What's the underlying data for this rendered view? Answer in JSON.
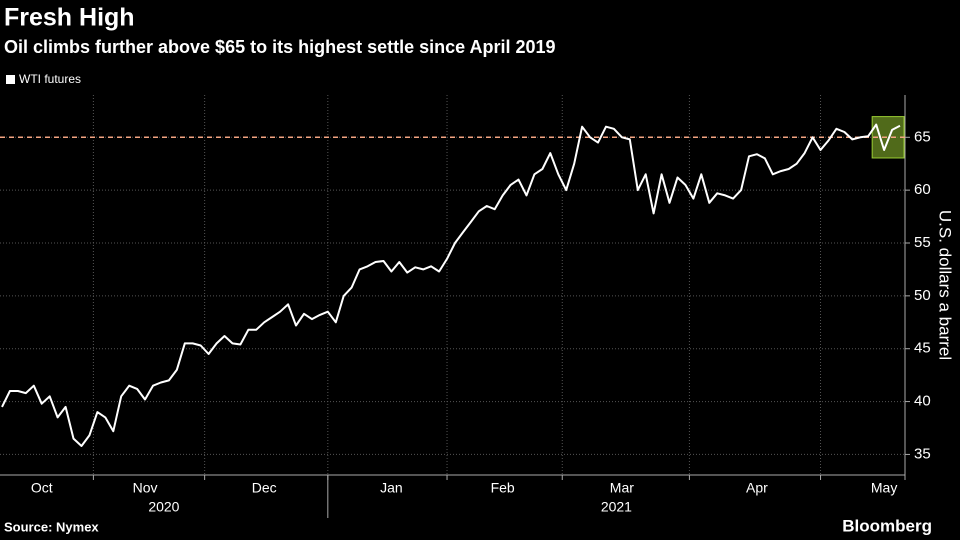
{
  "chart_data": {
    "type": "line",
    "title": "Fresh High",
    "subtitle": "Oil climbs further above $65 to its highest settle since April 2019",
    "y_axis_label": "U.S. dollars a barrel",
    "source": "Source: Nymex",
    "brand": "Bloomberg",
    "categories": [
      null,
      null,
      null,
      null,
      null,
      "Oct",
      null,
      null,
      null,
      null,
      null,
      null,
      null,
      null,
      null,
      null,
      null,
      null,
      "Nov",
      null,
      null,
      null,
      null,
      null,
      null,
      null,
      null,
      null,
      null,
      null,
      null,
      null,
      null,
      "Dec",
      null,
      null,
      null,
      null,
      null,
      null,
      null,
      null,
      null,
      null,
      null,
      null,
      null,
      null,
      null,
      "Jan",
      null,
      null,
      null,
      null,
      null,
      null,
      null,
      null,
      null,
      null,
      null,
      null,
      null,
      "Feb",
      null,
      null,
      null,
      null,
      null,
      null,
      null,
      null,
      null,
      null,
      null,
      null,
      null,
      null,
      "Mar",
      null,
      null,
      null,
      null,
      null,
      null,
      null,
      null,
      null,
      null,
      null,
      null,
      null,
      null,
      null,
      null,
      "Apr",
      null,
      null,
      null,
      null,
      null,
      null,
      null,
      null,
      null,
      null,
      null,
      null,
      null,
      null,
      null,
      "May",
      null,
      null
    ],
    "year_labels": [
      "2020",
      "2021"
    ],
    "series": [
      {
        "name": "WTI futures",
        "color": "#ffffff",
        "values": [
          39.5,
          41,
          41,
          40.8,
          41.5,
          39.8,
          40.5,
          38.5,
          39.5,
          36.5,
          35.8,
          36.8,
          39,
          38.5,
          37.2,
          40.5,
          41.5,
          41.2,
          40.2,
          41.5,
          41.8,
          42,
          43,
          45.5,
          45.5,
          45.3,
          44.5,
          45.5,
          46.2,
          45.5,
          45.4,
          46.8,
          46.8,
          47.5,
          48,
          48.5,
          49.2,
          47.2,
          48.3,
          47.8,
          48.2,
          48.5,
          47.5,
          50,
          50.8,
          52.5,
          52.8,
          53.2,
          53.3,
          52.3,
          53.2,
          52.2,
          52.7,
          52.5,
          52.8,
          52.3,
          53.5,
          55,
          56,
          57,
          58,
          58.5,
          58.2,
          59.5,
          60.5,
          61,
          59.5,
          61.5,
          62,
          63.5,
          61.5,
          60,
          62.5,
          66,
          65,
          64.5,
          66,
          65.8,
          65,
          64.8,
          60,
          61.5,
          57.8,
          61.5,
          58.8,
          61.2,
          60.5,
          59.2,
          61.5,
          58.8,
          59.7,
          59.5,
          59.2,
          60,
          63.2,
          63.4,
          63,
          61.5,
          61.8,
          62,
          62.5,
          63.5,
          65,
          63.8,
          64.7,
          65.8,
          65.5,
          64.8,
          65,
          65.1,
          66.2,
          63.8,
          65.7,
          66.1
        ]
      }
    ],
    "reference_line": 65,
    "reference_color": "#f4a582",
    "highlight_color": "#6b8e23",
    "ylim": [
      34,
      69
    ],
    "yticks": [
      35,
      40,
      45,
      50,
      55,
      60,
      65
    ],
    "grid": true
  }
}
